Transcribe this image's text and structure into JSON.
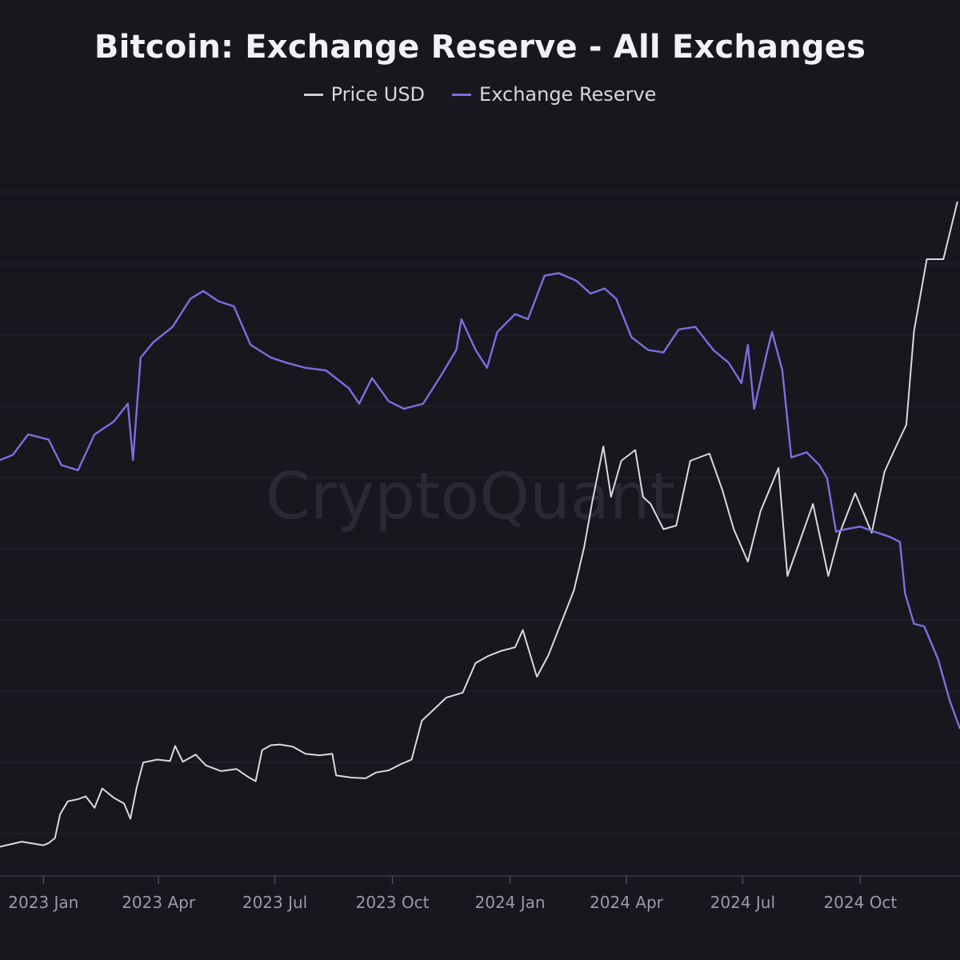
{
  "chart_data": {
    "type": "line",
    "title": "Bitcoin: Exchange Reserve - All Exchanges",
    "watermark": "CryptoQuant",
    "grid": true,
    "legend_position": "top-center",
    "xlim": [
      "2022-11-28",
      "2024-12-18"
    ],
    "x_ticks": [
      {
        "date": "2023-01-01",
        "label": "2023 Jan"
      },
      {
        "date": "2023-04-01",
        "label": "2023 Apr"
      },
      {
        "date": "2023-07-01",
        "label": "2023 Jul"
      },
      {
        "date": "2023-10-01",
        "label": "2023 Oct"
      },
      {
        "date": "2024-01-01",
        "label": "2024 Jan"
      },
      {
        "date": "2024-04-01",
        "label": "2024 Apr"
      },
      {
        "date": "2024-07-01",
        "label": "2024 Jul"
      },
      {
        "date": "2024-10-01",
        "label": "2024 Oct"
      }
    ],
    "series": [
      {
        "name": "Price USD",
        "color": "#d9d9de",
        "points": [
          [
            "2022-11-28",
            16400
          ],
          [
            "2022-12-15",
            17100
          ],
          [
            "2023-01-01",
            16600
          ],
          [
            "2023-01-05",
            16900
          ],
          [
            "2023-01-10",
            17600
          ],
          [
            "2023-01-14",
            20900
          ],
          [
            "2023-01-20",
            22700
          ],
          [
            "2023-01-28",
            23000
          ],
          [
            "2023-02-03",
            23400
          ],
          [
            "2023-02-10",
            21800
          ],
          [
            "2023-02-16",
            24500
          ],
          [
            "2023-02-25",
            23200
          ],
          [
            "2023-03-05",
            22400
          ],
          [
            "2023-03-10",
            20300
          ],
          [
            "2023-03-15",
            24700
          ],
          [
            "2023-03-20",
            28100
          ],
          [
            "2023-03-31",
            28500
          ],
          [
            "2023-04-10",
            28300
          ],
          [
            "2023-04-14",
            30400
          ],
          [
            "2023-04-20",
            28200
          ],
          [
            "2023-04-30",
            29200
          ],
          [
            "2023-05-08",
            27700
          ],
          [
            "2023-05-20",
            26900
          ],
          [
            "2023-06-01",
            27200
          ],
          [
            "2023-06-10",
            26100
          ],
          [
            "2023-06-16",
            25500
          ],
          [
            "2023-06-21",
            29800
          ],
          [
            "2023-06-28",
            30500
          ],
          [
            "2023-07-05",
            30600
          ],
          [
            "2023-07-15",
            30300
          ],
          [
            "2023-07-25",
            29300
          ],
          [
            "2023-08-05",
            29100
          ],
          [
            "2023-08-15",
            29300
          ],
          [
            "2023-08-18",
            26300
          ],
          [
            "2023-08-30",
            26000
          ],
          [
            "2023-09-10",
            25900
          ],
          [
            "2023-09-18",
            26700
          ],
          [
            "2023-09-28",
            27000
          ],
          [
            "2023-10-08",
            27900
          ],
          [
            "2023-10-16",
            28500
          ],
          [
            "2023-10-24",
            33900
          ],
          [
            "2023-11-02",
            35400
          ],
          [
            "2023-11-12",
            37100
          ],
          [
            "2023-11-25",
            37800
          ],
          [
            "2023-12-05",
            41900
          ],
          [
            "2023-12-15",
            42900
          ],
          [
            "2023-12-25",
            43600
          ],
          [
            "2024-01-05",
            44100
          ],
          [
            "2024-01-11",
            46500
          ],
          [
            "2024-01-22",
            40000
          ],
          [
            "2024-01-31",
            43000
          ],
          [
            "2024-02-10",
            47500
          ],
          [
            "2024-02-20",
            52000
          ],
          [
            "2024-02-28",
            58000
          ],
          [
            "2024-03-05",
            64000
          ],
          [
            "2024-03-14",
            72000
          ],
          [
            "2024-03-20",
            65000
          ],
          [
            "2024-03-28",
            70000
          ],
          [
            "2024-04-08",
            71500
          ],
          [
            "2024-04-14",
            65000
          ],
          [
            "2024-04-20",
            64000
          ],
          [
            "2024-04-30",
            60500
          ],
          [
            "2024-05-10",
            61000
          ],
          [
            "2024-05-21",
            70000
          ],
          [
            "2024-06-05",
            71000
          ],
          [
            "2024-06-15",
            66000
          ],
          [
            "2024-06-24",
            60500
          ],
          [
            "2024-07-05",
            56000
          ],
          [
            "2024-07-15",
            63000
          ],
          [
            "2024-07-29",
            69000
          ],
          [
            "2024-08-05",
            54000
          ],
          [
            "2024-08-15",
            59000
          ],
          [
            "2024-08-25",
            64000
          ],
          [
            "2024-09-06",
            54000
          ],
          [
            "2024-09-15",
            60000
          ],
          [
            "2024-09-27",
            65500
          ],
          [
            "2024-10-10",
            60000
          ],
          [
            "2024-10-20",
            68500
          ],
          [
            "2024-10-29",
            72000
          ],
          [
            "2024-11-06",
            75000
          ],
          [
            "2024-11-12",
            88000
          ],
          [
            "2024-11-22",
            98000
          ],
          [
            "2024-12-05",
            98000
          ],
          [
            "2024-12-16",
            106000
          ]
        ]
      },
      {
        "name": "Exchange Reserve",
        "color": "#7b6fe0",
        "points": [
          [
            "2022-11-28",
            2.29
          ],
          [
            "2022-12-08",
            2.292
          ],
          [
            "2022-12-20",
            2.3
          ],
          [
            "2023-01-05",
            2.298
          ],
          [
            "2023-01-15",
            2.288
          ],
          [
            "2023-01-28",
            2.286
          ],
          [
            "2023-02-10",
            2.3
          ],
          [
            "2023-02-25",
            2.305
          ],
          [
            "2023-03-08",
            2.312
          ],
          [
            "2023-03-12",
            2.29
          ],
          [
            "2023-03-18",
            2.33
          ],
          [
            "2023-03-28",
            2.336
          ],
          [
            "2023-04-12",
            2.342
          ],
          [
            "2023-04-26",
            2.353
          ],
          [
            "2023-05-06",
            2.356
          ],
          [
            "2023-05-18",
            2.352
          ],
          [
            "2023-05-30",
            2.35
          ],
          [
            "2023-06-12",
            2.335
          ],
          [
            "2023-06-28",
            2.33
          ],
          [
            "2023-07-10",
            2.328
          ],
          [
            "2023-07-25",
            2.326
          ],
          [
            "2023-08-10",
            2.325
          ],
          [
            "2023-08-28",
            2.318
          ],
          [
            "2023-09-05",
            2.312
          ],
          [
            "2023-09-15",
            2.322
          ],
          [
            "2023-09-28",
            2.313
          ],
          [
            "2023-10-10",
            2.31
          ],
          [
            "2023-10-25",
            2.312
          ],
          [
            "2023-11-08",
            2.323
          ],
          [
            "2023-11-20",
            2.333
          ],
          [
            "2023-11-24",
            2.345
          ],
          [
            "2023-12-05",
            2.333
          ],
          [
            "2023-12-14",
            2.326
          ],
          [
            "2023-12-22",
            2.34
          ],
          [
            "2024-01-05",
            2.347
          ],
          [
            "2024-01-15",
            2.345
          ],
          [
            "2024-01-28",
            2.362
          ],
          [
            "2024-02-08",
            2.363
          ],
          [
            "2024-02-22",
            2.36
          ],
          [
            "2024-03-04",
            2.355
          ],
          [
            "2024-03-15",
            2.357
          ],
          [
            "2024-03-24",
            2.353
          ],
          [
            "2024-04-05",
            2.338
          ],
          [
            "2024-04-18",
            2.333
          ],
          [
            "2024-04-30",
            2.332
          ],
          [
            "2024-05-12",
            2.341
          ],
          [
            "2024-05-25",
            2.342
          ],
          [
            "2024-06-08",
            2.333
          ],
          [
            "2024-06-20",
            2.328
          ],
          [
            "2024-06-30",
            2.32
          ],
          [
            "2024-07-05",
            2.335
          ],
          [
            "2024-07-10",
            2.31
          ],
          [
            "2024-07-20",
            2.332
          ],
          [
            "2024-07-24",
            2.34
          ],
          [
            "2024-08-01",
            2.325
          ],
          [
            "2024-08-08",
            2.291
          ],
          [
            "2024-08-20",
            2.293
          ],
          [
            "2024-08-30",
            2.288
          ],
          [
            "2024-09-05",
            2.283
          ],
          [
            "2024-09-12",
            2.262
          ],
          [
            "2024-09-20",
            2.263
          ],
          [
            "2024-10-01",
            2.264
          ],
          [
            "2024-10-12",
            2.262
          ],
          [
            "2024-10-24",
            2.26
          ],
          [
            "2024-11-01",
            2.258
          ],
          [
            "2024-11-05",
            2.238
          ],
          [
            "2024-11-12",
            2.226
          ],
          [
            "2024-11-20",
            2.225
          ],
          [
            "2024-12-01",
            2.212
          ],
          [
            "2024-12-10",
            2.196
          ],
          [
            "2024-12-18",
            2.185
          ]
        ]
      }
    ]
  }
}
